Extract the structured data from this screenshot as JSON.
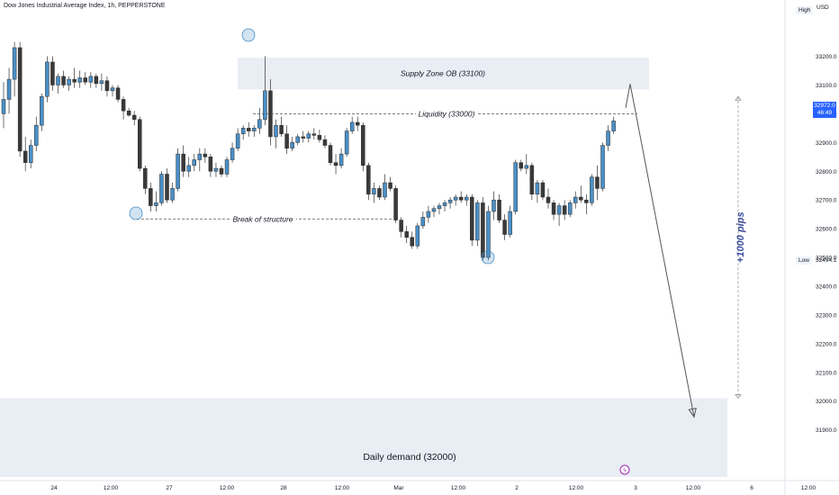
{
  "header": {
    "symbol_title": "Dow Jones Industrial Average Index, 1h, PEPPERSTONE",
    "currency": "USD",
    "high_label": "High",
    "low_label": "Low",
    "low_value": "32494.1",
    "current_price": "32972.0",
    "countdown": "46:49"
  },
  "colors": {
    "bull": "#4a90c8",
    "bear": "#3a3a3a",
    "zone": "#e9edf4",
    "arrow": "#555555",
    "pips_text": "#3a4a9a"
  },
  "chart_data": {
    "type": "candlestick",
    "ylim": [
      31830,
      33280
    ],
    "y_ticks": [
      31900,
      32000,
      32100,
      32200,
      32300,
      32400,
      32500,
      32600,
      32700,
      32800,
      32900,
      33000,
      33100,
      33200
    ],
    "x_ticks": [
      "24",
      "12:00",
      "27",
      "12:00",
      "28",
      "12:00",
      "Mar",
      "12:00",
      "2",
      "12:00",
      "3",
      "12:00",
      "6",
      "12:00"
    ],
    "annotations": {
      "supply_zone": {
        "label": "Supply Zone OB (33100)",
        "bottom": 33085,
        "top": 33195
      },
      "liquidity": {
        "label": "Liquidity (33000)",
        "value": 33000
      },
      "break_of_structure": {
        "label": "Break of structure",
        "value": 32634
      },
      "daily_demand": {
        "label": "Daily demand (32000)",
        "bottom": 31820,
        "top": 32010
      },
      "pips_label": "+1000 pips",
      "projection": {
        "from": 33005,
        "peak": 33110,
        "target": 31945
      }
    },
    "candles": [
      {
        "o": 33000,
        "h": 33110,
        "l": 32950,
        "c": 33050
      },
      {
        "o": 33050,
        "h": 33160,
        "l": 33000,
        "c": 33120
      },
      {
        "o": 33120,
        "h": 33250,
        "l": 33060,
        "c": 33230
      },
      {
        "o": 33230,
        "h": 33250,
        "l": 32850,
        "c": 32870
      },
      {
        "o": 32870,
        "h": 32920,
        "l": 32800,
        "c": 32830
      },
      {
        "o": 32830,
        "h": 32910,
        "l": 32810,
        "c": 32890
      },
      {
        "o": 32890,
        "h": 32990,
        "l": 32870,
        "c": 32960
      },
      {
        "o": 32960,
        "h": 33070,
        "l": 32940,
        "c": 33060
      },
      {
        "o": 33060,
        "h": 33200,
        "l": 33040,
        "c": 33180
      },
      {
        "o": 33180,
        "h": 33200,
        "l": 33080,
        "c": 33100
      },
      {
        "o": 33100,
        "h": 33140,
        "l": 33070,
        "c": 33130
      },
      {
        "o": 33130,
        "h": 33150,
        "l": 33090,
        "c": 33100
      },
      {
        "o": 33100,
        "h": 33130,
        "l": 33080,
        "c": 33120
      },
      {
        "o": 33120,
        "h": 33160,
        "l": 33090,
        "c": 33110
      },
      {
        "o": 33110,
        "h": 33150,
        "l": 33090,
        "c": 33125
      },
      {
        "o": 33125,
        "h": 33145,
        "l": 33100,
        "c": 33110
      },
      {
        "o": 33110,
        "h": 33145,
        "l": 33090,
        "c": 33130
      },
      {
        "o": 33130,
        "h": 33140,
        "l": 33090,
        "c": 33105
      },
      {
        "o": 33105,
        "h": 33140,
        "l": 33080,
        "c": 33115
      },
      {
        "o": 33115,
        "h": 33130,
        "l": 33060,
        "c": 33080
      },
      {
        "o": 33080,
        "h": 33100,
        "l": 33060,
        "c": 33090
      },
      {
        "o": 33090,
        "h": 33100,
        "l": 33040,
        "c": 33050
      },
      {
        "o": 33050,
        "h": 33060,
        "l": 32980,
        "c": 33010
      },
      {
        "o": 33010,
        "h": 33020,
        "l": 32990,
        "c": 32995
      },
      {
        "o": 32995,
        "h": 33010,
        "l": 32960,
        "c": 32980
      },
      {
        "o": 32980,
        "h": 32990,
        "l": 32800,
        "c": 32810
      },
      {
        "o": 32810,
        "h": 32820,
        "l": 32720,
        "c": 32740
      },
      {
        "o": 32740,
        "h": 32760,
        "l": 32660,
        "c": 32680
      },
      {
        "o": 32680,
        "h": 32730,
        "l": 32660,
        "c": 32690
      },
      {
        "o": 32690,
        "h": 32800,
        "l": 32680,
        "c": 32790
      },
      {
        "o": 32790,
        "h": 32810,
        "l": 32690,
        "c": 32700
      },
      {
        "o": 32700,
        "h": 32760,
        "l": 32690,
        "c": 32740
      },
      {
        "o": 32740,
        "h": 32880,
        "l": 32730,
        "c": 32860
      },
      {
        "o": 32860,
        "h": 32890,
        "l": 32780,
        "c": 32800
      },
      {
        "o": 32800,
        "h": 32850,
        "l": 32780,
        "c": 32820
      },
      {
        "o": 32820,
        "h": 32860,
        "l": 32800,
        "c": 32840
      },
      {
        "o": 32840,
        "h": 32880,
        "l": 32800,
        "c": 32860
      },
      {
        "o": 32860,
        "h": 32880,
        "l": 32830,
        "c": 32850
      },
      {
        "o": 32850,
        "h": 32860,
        "l": 32780,
        "c": 32800
      },
      {
        "o": 32800,
        "h": 32830,
        "l": 32780,
        "c": 32810
      },
      {
        "o": 32810,
        "h": 32820,
        "l": 32780,
        "c": 32790
      },
      {
        "o": 32790,
        "h": 32850,
        "l": 32780,
        "c": 32840
      },
      {
        "o": 32840,
        "h": 32900,
        "l": 32830,
        "c": 32880
      },
      {
        "o": 32880,
        "h": 32950,
        "l": 32870,
        "c": 32930
      },
      {
        "o": 32930,
        "h": 32960,
        "l": 32910,
        "c": 32950
      },
      {
        "o": 32950,
        "h": 32970,
        "l": 32920,
        "c": 32940
      },
      {
        "o": 32940,
        "h": 32960,
        "l": 32920,
        "c": 32950
      },
      {
        "o": 32950,
        "h": 33020,
        "l": 32930,
        "c": 32980
      },
      {
        "o": 32980,
        "h": 33200,
        "l": 32960,
        "c": 33080
      },
      {
        "o": 33080,
        "h": 33120,
        "l": 32890,
        "c": 32920
      },
      {
        "o": 32920,
        "h": 32980,
        "l": 32880,
        "c": 32960
      },
      {
        "o": 32960,
        "h": 32990,
        "l": 32920,
        "c": 32930
      },
      {
        "o": 32930,
        "h": 32960,
        "l": 32860,
        "c": 32880
      },
      {
        "o": 32880,
        "h": 32920,
        "l": 32870,
        "c": 32900
      },
      {
        "o": 32900,
        "h": 32930,
        "l": 32890,
        "c": 32920
      },
      {
        "o": 32920,
        "h": 32940,
        "l": 32900,
        "c": 32915
      },
      {
        "o": 32915,
        "h": 32940,
        "l": 32900,
        "c": 32930
      },
      {
        "o": 32930,
        "h": 32950,
        "l": 32910,
        "c": 32925
      },
      {
        "o": 32925,
        "h": 32945,
        "l": 32900,
        "c": 32910
      },
      {
        "o": 32910,
        "h": 32925,
        "l": 32880,
        "c": 32890
      },
      {
        "o": 32890,
        "h": 32900,
        "l": 32820,
        "c": 32830
      },
      {
        "o": 32830,
        "h": 32860,
        "l": 32790,
        "c": 32820
      },
      {
        "o": 32820,
        "h": 32880,
        "l": 32810,
        "c": 32860
      },
      {
        "o": 32860,
        "h": 32950,
        "l": 32850,
        "c": 32940
      },
      {
        "o": 32940,
        "h": 32990,
        "l": 32930,
        "c": 32970
      },
      {
        "o": 32970,
        "h": 32990,
        "l": 32940,
        "c": 32960
      },
      {
        "o": 32960,
        "h": 32970,
        "l": 32800,
        "c": 32820
      },
      {
        "o": 32820,
        "h": 32830,
        "l": 32700,
        "c": 32720
      },
      {
        "o": 32720,
        "h": 32760,
        "l": 32690,
        "c": 32740
      },
      {
        "o": 32740,
        "h": 32750,
        "l": 32700,
        "c": 32710
      },
      {
        "o": 32710,
        "h": 32790,
        "l": 32700,
        "c": 32760
      },
      {
        "o": 32760,
        "h": 32780,
        "l": 32730,
        "c": 32740
      },
      {
        "o": 32740,
        "h": 32750,
        "l": 32620,
        "c": 32630
      },
      {
        "o": 32630,
        "h": 32640,
        "l": 32570,
        "c": 32590
      },
      {
        "o": 32590,
        "h": 32610,
        "l": 32550,
        "c": 32570
      },
      {
        "o": 32570,
        "h": 32590,
        "l": 32530,
        "c": 32540
      },
      {
        "o": 32540,
        "h": 32620,
        "l": 32530,
        "c": 32610
      },
      {
        "o": 32610,
        "h": 32660,
        "l": 32600,
        "c": 32640
      },
      {
        "o": 32640,
        "h": 32680,
        "l": 32620,
        "c": 32660
      },
      {
        "o": 32660,
        "h": 32680,
        "l": 32640,
        "c": 32670
      },
      {
        "o": 32670,
        "h": 32690,
        "l": 32650,
        "c": 32680
      },
      {
        "o": 32680,
        "h": 32700,
        "l": 32660,
        "c": 32690
      },
      {
        "o": 32690,
        "h": 32710,
        "l": 32670,
        "c": 32700
      },
      {
        "o": 32700,
        "h": 32720,
        "l": 32680,
        "c": 32710
      },
      {
        "o": 32710,
        "h": 32730,
        "l": 32690,
        "c": 32700
      },
      {
        "o": 32700,
        "h": 32720,
        "l": 32680,
        "c": 32710
      },
      {
        "o": 32710,
        "h": 32720,
        "l": 32540,
        "c": 32560
      },
      {
        "o": 32560,
        "h": 32700,
        "l": 32540,
        "c": 32690
      },
      {
        "o": 32690,
        "h": 32710,
        "l": 32490,
        "c": 32500
      },
      {
        "o": 32500,
        "h": 32680,
        "l": 32490,
        "c": 32660
      },
      {
        "o": 32660,
        "h": 32730,
        "l": 32630,
        "c": 32700
      },
      {
        "o": 32700,
        "h": 32720,
        "l": 32620,
        "c": 32630
      },
      {
        "o": 32630,
        "h": 32650,
        "l": 32560,
        "c": 32580
      },
      {
        "o": 32580,
        "h": 32680,
        "l": 32570,
        "c": 32660
      },
      {
        "o": 32660,
        "h": 32840,
        "l": 32650,
        "c": 32830
      },
      {
        "o": 32830,
        "h": 32840,
        "l": 32800,
        "c": 32810
      },
      {
        "o": 32810,
        "h": 32860,
        "l": 32790,
        "c": 32820
      },
      {
        "o": 32820,
        "h": 32830,
        "l": 32700,
        "c": 32720
      },
      {
        "o": 32720,
        "h": 32770,
        "l": 32690,
        "c": 32760
      },
      {
        "o": 32760,
        "h": 32770,
        "l": 32700,
        "c": 32710
      },
      {
        "o": 32710,
        "h": 32740,
        "l": 32670,
        "c": 32690
      },
      {
        "o": 32690,
        "h": 32700,
        "l": 32630,
        "c": 32650
      },
      {
        "o": 32650,
        "h": 32690,
        "l": 32610,
        "c": 32680
      },
      {
        "o": 32680,
        "h": 32700,
        "l": 32630,
        "c": 32650
      },
      {
        "o": 32650,
        "h": 32700,
        "l": 32640,
        "c": 32690
      },
      {
        "o": 32690,
        "h": 32730,
        "l": 32670,
        "c": 32710
      },
      {
        "o": 32710,
        "h": 32750,
        "l": 32690,
        "c": 32700
      },
      {
        "o": 32700,
        "h": 32720,
        "l": 32650,
        "c": 32690
      },
      {
        "o": 32690,
        "h": 32790,
        "l": 32680,
        "c": 32780
      },
      {
        "o": 32780,
        "h": 32820,
        "l": 32700,
        "c": 32740
      },
      {
        "o": 32740,
        "h": 32900,
        "l": 32730,
        "c": 32890
      },
      {
        "o": 32890,
        "h": 32960,
        "l": 32870,
        "c": 32940
      },
      {
        "o": 32940,
        "h": 32990,
        "l": 32930,
        "c": 32975
      }
    ]
  }
}
